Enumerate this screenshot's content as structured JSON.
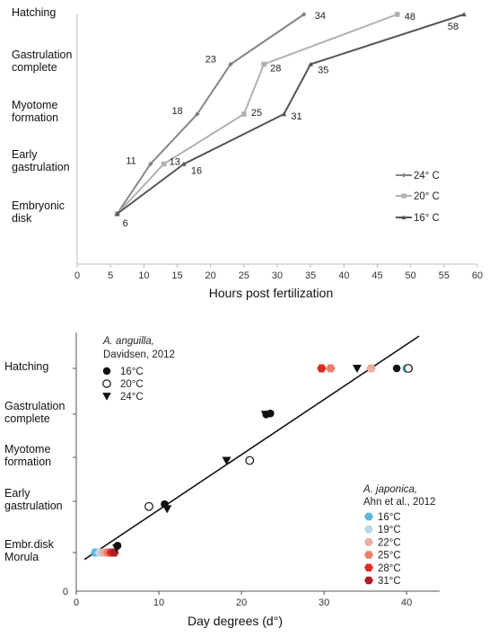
{
  "chart_data": [
    {
      "type": "line",
      "xlabel": "Hours post fertilization",
      "xlim": [
        0,
        60
      ],
      "xticks": [
        "0",
        "5",
        "10",
        "15",
        "20",
        "25",
        "30",
        "35",
        "40",
        "45",
        "50",
        "55",
        "60"
      ],
      "stages": [
        "Embryonic disk",
        "Early gastrulation",
        "Myotome formation",
        "Gastrulation complete",
        "Hatching"
      ],
      "stage_lines": [
        [
          "Embryonic",
          "disk"
        ],
        [
          "Early",
          "gastrulation"
        ],
        [
          "Myotome",
          "formation"
        ],
        [
          "Gastrulation",
          "complete"
        ],
        [
          "Hatching",
          ""
        ]
      ],
      "series": [
        {
          "name": "24° C",
          "color": "#858585",
          "marker": "diamond",
          "x": [
            6,
            11,
            18,
            23,
            34
          ],
          "y": [
            0,
            1,
            2,
            3,
            4
          ],
          "labels": [
            "",
            "11",
            "18",
            "23",
            "34"
          ]
        },
        {
          "name": "20° C",
          "color": "#b0b0b0",
          "marker": "square",
          "x": [
            6,
            13,
            25,
            28,
            48
          ],
          "y": [
            0,
            1,
            2,
            3,
            4
          ],
          "labels": [
            "",
            "13",
            "25",
            "28",
            "48"
          ]
        },
        {
          "name": "16° C",
          "color": "#555555",
          "marker": "triangle",
          "x": [
            6,
            16,
            31,
            35,
            58
          ],
          "y": [
            0,
            1,
            2,
            3,
            4
          ],
          "labels": [
            "6",
            "16",
            "31",
            "35",
            "58"
          ]
        }
      ],
      "legend": "right"
    },
    {
      "type": "scatter",
      "xlabel": "Day degrees (d°)",
      "xlim": [
        0,
        44
      ],
      "xticks": [
        "0",
        "10",
        "20",
        "30",
        "40"
      ],
      "y_origin_tick": "0",
      "stages": [
        "Embr.disk Morula",
        "Early gastrulation",
        "Myotome formation",
        "Gastrulation complete",
        "Hatching"
      ],
      "stage_lines": [
        [
          "Embr.disk",
          "Morula"
        ],
        [
          "Early",
          "gastrulation"
        ],
        [
          "Myotome",
          "formation"
        ],
        [
          "Gastrulation",
          "complete"
        ],
        [
          "Hatching",
          ""
        ]
      ],
      "trendline": {
        "x": [
          1,
          41.5
        ],
        "y": [
          -0.15,
          4.7
        ]
      },
      "legend_anguilla": {
        "species": "A. anguilla,",
        "citation": "Davidsen, 2012",
        "items": [
          {
            "label": "16°C",
            "marker": "filled-circle"
          },
          {
            "label": "20°C",
            "marker": "open-circle"
          },
          {
            "label": "24°C",
            "marker": "triangle-down"
          }
        ]
      },
      "legend_japonica": {
        "species": "A. japonica,",
        "citation": "Ahn et al., 2012",
        "items": [
          {
            "label": "16°C",
            "color": "#5ab8dc"
          },
          {
            "label": "19°C",
            "color": "#bcd6ea"
          },
          {
            "label": "22°C",
            "color": "#e9b0a0"
          },
          {
            "label": "25°C",
            "color": "#ec7e6a"
          },
          {
            "label": "28°C",
            "color": "#e02a22"
          },
          {
            "label": "31°C",
            "color": "#b11c26"
          }
        ]
      },
      "anguilla_points": [
        {
          "x": 5.0,
          "y": 0.15,
          "marker": "filled-circle"
        },
        {
          "x": 10.7,
          "y": 1.05,
          "marker": "filled-circle"
        },
        {
          "x": 23.0,
          "y": 3.0,
          "marker": "filled-circle"
        },
        {
          "x": 23.5,
          "y": 3.02,
          "marker": "filled-circle"
        },
        {
          "x": 38.8,
          "y": 4.0,
          "marker": "filled-circle"
        },
        {
          "x": 8.8,
          "y": 1.0,
          "marker": "open-circle"
        },
        {
          "x": 21.0,
          "y": 2.0,
          "marker": "open-circle"
        },
        {
          "x": 40.2,
          "y": 4.0,
          "marker": "open-circle"
        },
        {
          "x": 4.9,
          "y": 0.1,
          "marker": "triangle-down"
        },
        {
          "x": 11.0,
          "y": 0.95,
          "marker": "triangle-down"
        },
        {
          "x": 18.2,
          "y": 2.0,
          "marker": "triangle-down"
        },
        {
          "x": 22.9,
          "y": 3.0,
          "marker": "triangle-down"
        },
        {
          "x": 34.0,
          "y": 4.0,
          "marker": "triangle-down"
        }
      ],
      "japonica_points": [
        {
          "x": 2.3,
          "y": 0.0,
          "color": "#5ab8dc"
        },
        {
          "x": 40.0,
          "y": 4.0,
          "color": "#5ab8dc"
        },
        {
          "x": 2.8,
          "y": 0.0,
          "color": "#bcd6ea"
        },
        {
          "x": 40.3,
          "y": 4.0,
          "color": "#bcd6ea"
        },
        {
          "x": 3.3,
          "y": 0.0,
          "color": "#e9b0a0"
        },
        {
          "x": 35.7,
          "y": 4.0,
          "color": "#e9b0a0"
        },
        {
          "x": 3.8,
          "y": 0.0,
          "color": "#ec7e6a"
        },
        {
          "x": 30.8,
          "y": 4.0,
          "color": "#ec7e6a"
        },
        {
          "x": 4.2,
          "y": 0.0,
          "color": "#e02a22"
        },
        {
          "x": 29.7,
          "y": 4.0,
          "color": "#e02a22"
        },
        {
          "x": 4.6,
          "y": 0.0,
          "color": "#b11c26"
        }
      ]
    }
  ]
}
